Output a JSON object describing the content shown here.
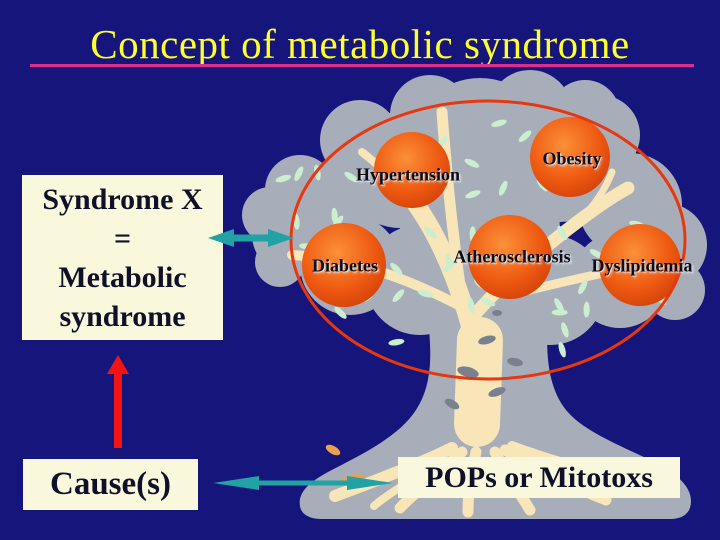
{
  "title": {
    "text": "Concept of metabolic syndrome"
  },
  "syndrome_box": {
    "line1": "Syndrome X",
    "line2": "=",
    "line3": "Metabolic",
    "line4": "syndrome"
  },
  "cause_box": {
    "label": "Cause(s)"
  },
  "pops_box": {
    "label": "POPs or Mitotoxs"
  },
  "tree": {
    "nodes": [
      {
        "label": "Hypertension"
      },
      {
        "label": "Obesity"
      },
      {
        "label": "Diabetes"
      },
      {
        "label": "Atherosclerosis"
      },
      {
        "label": "Dyslipidemia"
      }
    ]
  },
  "colors": {
    "background": "#15157B",
    "title": "#FFFF2D",
    "underline": "#DE2E8C",
    "panel_bg": "#FAF8DC",
    "panel_text": "#10102A",
    "ellipse": "#E6380E",
    "teal": "#21A2A4",
    "red": "#F21414",
    "crown": "#A8ADBA",
    "leaf": "#CBEECF",
    "branch": "#F8E5B8",
    "base_patch": "#E9A050",
    "shade": "#79818E",
    "ball_light": "#FC9038",
    "ball_mid": "#EE5A12",
    "ball_dark": "#C93806"
  }
}
